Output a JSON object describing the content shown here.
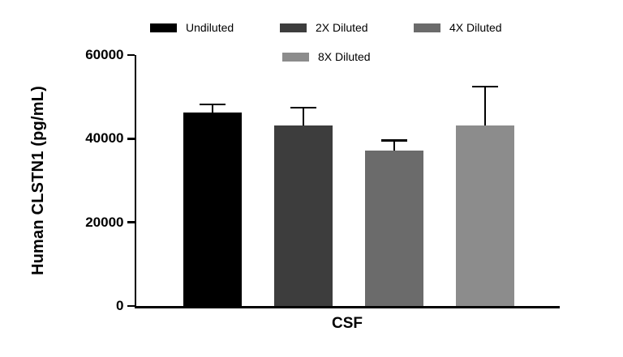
{
  "chart_data": {
    "type": "bar",
    "title": "",
    "categories": [
      "CSF"
    ],
    "series": [
      {
        "name": "Undiluted",
        "value": 46300,
        "error": 1900,
        "color": "#000000"
      },
      {
        "name": "2X Diluted",
        "value": 43200,
        "error": 4200,
        "color": "#3d3d3d"
      },
      {
        "name": "4X Diluted",
        "value": 37200,
        "error": 2400,
        "color": "#6b6b6b"
      },
      {
        "name": "8X Diluted",
        "value": 43100,
        "error": 9400,
        "color": "#8c8c8c"
      }
    ],
    "xlabel": "CSF",
    "ylabel": "Human CLSTN1 (pg/mL)",
    "ylim": [
      0,
      60000
    ],
    "yticks": [
      0,
      20000,
      40000,
      60000
    ],
    "legend_position": "top",
    "legend_rows": [
      3,
      1
    ],
    "grid": false,
    "background": "#ffffff",
    "axis_color": "#000000"
  }
}
